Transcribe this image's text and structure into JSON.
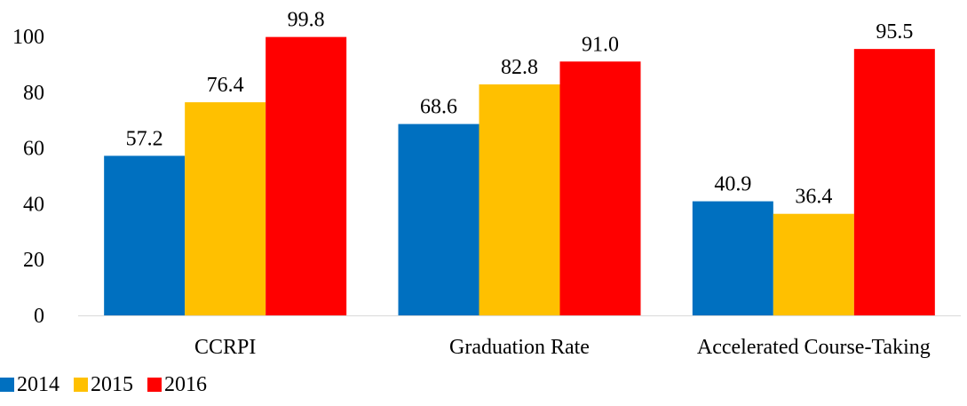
{
  "chart_data": {
    "type": "bar",
    "categories": [
      "CCRPI",
      "Graduation Rate",
      "Accelerated Course-Taking"
    ],
    "series": [
      {
        "name": "2014",
        "values": [
          57.2,
          68.6,
          40.9
        ],
        "color": "#0070C0"
      },
      {
        "name": "2015",
        "values": [
          76.4,
          82.8,
          36.4
        ],
        "color": "#FFC000"
      },
      {
        "name": "2016",
        "values": [
          99.8,
          91.0,
          95.5
        ],
        "color": "#FF0000"
      }
    ],
    "data_labels": [
      [
        "57.2",
        "68.6",
        "40.9"
      ],
      [
        "76.4",
        "82.8",
        "36.4"
      ],
      [
        "99.8",
        "91.0",
        "95.5"
      ]
    ],
    "ylim": [
      0,
      100
    ],
    "yticks": [
      "0",
      "20",
      "40",
      "60",
      "80",
      "100"
    ],
    "grid": false,
    "legend_position": "bottom-left"
  }
}
